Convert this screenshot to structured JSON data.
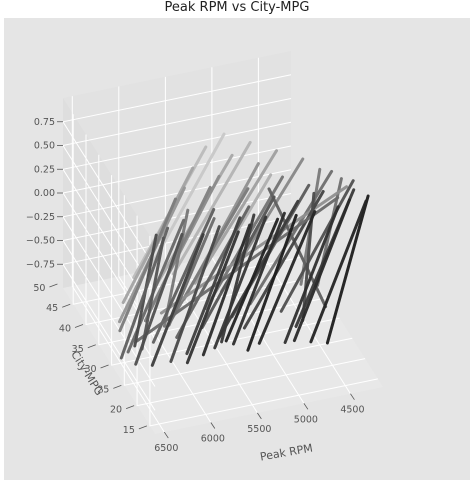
{
  "chart_data": {
    "type": "line",
    "projection": "3d",
    "title": "Peak RPM vs City-MPG",
    "xlabel": "Peak RPM",
    "ylabel": "City-MPG",
    "zlabel": "",
    "x_ticks": [
      "6500",
      "6000",
      "5500",
      "5000",
      "4500"
    ],
    "y_ticks": [
      "15",
      "20",
      "25",
      "30",
      "35",
      "40",
      "45",
      "50"
    ],
    "z_ticks": [
      "0.75",
      "0.50",
      "0.25",
      "0.00",
      "−0.25",
      "−0.50",
      "−0.75"
    ],
    "xlim": [
      4150,
      6600
    ],
    "ylim": [
      13,
      49
    ],
    "zlim": [
      -1,
      1
    ],
    "x_inverted": true,
    "grid": true,
    "background": "#e5e5e5",
    "segments": [
      {
        "x1": 4200,
        "y1": 17,
        "x2": 4500,
        "y2": 22,
        "gray": "#1c1c1c"
      },
      {
        "x1": 4250,
        "y1": 16,
        "x2": 4650,
        "y2": 23,
        "gray": "#242424"
      },
      {
        "x1": 4400,
        "y1": 17,
        "x2": 4800,
        "y2": 24,
        "gray": "#2a2a2a"
      },
      {
        "x1": 4550,
        "y1": 16,
        "x2": 4900,
        "y2": 24,
        "gray": "#303030"
      },
      {
        "x1": 4300,
        "y1": 19,
        "x2": 4700,
        "y2": 27,
        "gray": "#3a3a3a"
      },
      {
        "x1": 4800,
        "y1": 16,
        "x2": 5150,
        "y2": 25,
        "gray": "#262626"
      },
      {
        "x1": 5000,
        "y1": 16,
        "x2": 5300,
        "y2": 24,
        "gray": "#1e1e1e"
      },
      {
        "x1": 5100,
        "y1": 17,
        "x2": 5400,
        "y2": 26,
        "gray": "#2e2e2e"
      },
      {
        "x1": 5200,
        "y1": 16,
        "x2": 5450,
        "y2": 27,
        "gray": "#222222"
      },
      {
        "x1": 5300,
        "y1": 17,
        "x2": 5600,
        "y2": 26,
        "gray": "#363636"
      },
      {
        "x1": 4600,
        "y1": 20,
        "x2": 5200,
        "y2": 29,
        "gray": "#444444"
      },
      {
        "x1": 4900,
        "y1": 19,
        "x2": 5500,
        "y2": 28,
        "gray": "#3c3c3c"
      },
      {
        "x1": 5500,
        "y1": 16,
        "x2": 5750,
        "y2": 25,
        "gray": "#2c2c2c"
      },
      {
        "x1": 5550,
        "y1": 18,
        "x2": 5900,
        "y2": 26,
        "gray": "#404040"
      },
      {
        "x1": 5650,
        "y1": 15,
        "x2": 5950,
        "y2": 24,
        "gray": "#333333"
      },
      {
        "x1": 5800,
        "y1": 17,
        "x2": 6100,
        "y2": 25,
        "gray": "#484848"
      },
      {
        "x1": 6000,
        "y1": 16,
        "x2": 6300,
        "y2": 25,
        "gray": "#3e3e3e"
      },
      {
        "x1": 6200,
        "y1": 17,
        "x2": 6450,
        "y2": 26,
        "gray": "#505050"
      },
      {
        "x1": 4250,
        "y1": 21,
        "x2": 4750,
        "y2": 31,
        "gray": "#505050"
      },
      {
        "x1": 4700,
        "y1": 22,
        "x2": 5250,
        "y2": 32,
        "gray": "#5a5a5a"
      },
      {
        "x1": 5100,
        "y1": 21,
        "x2": 5600,
        "y2": 31,
        "gray": "#555555"
      },
      {
        "x1": 5400,
        "y1": 20,
        "x2": 5900,
        "y2": 30,
        "gray": "#626262"
      },
      {
        "x1": 5750,
        "y1": 21,
        "x2": 6150,
        "y2": 30,
        "gray": "#5e5e5e"
      },
      {
        "x1": 6100,
        "y1": 20,
        "x2": 6450,
        "y2": 29,
        "gray": "#686868"
      },
      {
        "x1": 6300,
        "y1": 19,
        "x2": 6550,
        "y2": 28,
        "gray": "#606060"
      },
      {
        "x1": 4400,
        "y1": 24,
        "x2": 5000,
        "y2": 34,
        "gray": "#6e6e6e"
      },
      {
        "x1": 4900,
        "y1": 25,
        "x2": 5450,
        "y2": 35,
        "gray": "#747474"
      },
      {
        "x1": 5300,
        "y1": 24,
        "x2": 5850,
        "y2": 34,
        "gray": "#7a7a7a"
      },
      {
        "x1": 5650,
        "y1": 26,
        "x2": 6100,
        "y2": 35,
        "gray": "#808080"
      },
      {
        "x1": 6050,
        "y1": 25,
        "x2": 6400,
        "y2": 34,
        "gray": "#7c7c7c"
      },
      {
        "x1": 4600,
        "y1": 28,
        "x2": 5200,
        "y2": 38,
        "gray": "#888888"
      },
      {
        "x1": 5050,
        "y1": 29,
        "x2": 5600,
        "y2": 38,
        "gray": "#909090"
      },
      {
        "x1": 5500,
        "y1": 28,
        "x2": 6000,
        "y2": 37,
        "gray": "#8c8c8c"
      },
      {
        "x1": 5900,
        "y1": 27,
        "x2": 6350,
        "y2": 36,
        "gray": "#959595"
      },
      {
        "x1": 4800,
        "y1": 31,
        "x2": 5400,
        "y2": 41,
        "gray": "#a0a0a0"
      },
      {
        "x1": 5250,
        "y1": 32,
        "x2": 5800,
        "y2": 42,
        "gray": "#a8a8a8"
      },
      {
        "x1": 5700,
        "y1": 31,
        "x2": 6200,
        "y2": 40,
        "gray": "#a4a4a4"
      },
      {
        "x1": 5000,
        "y1": 34,
        "x2": 5550,
        "y2": 44,
        "gray": "#b4b4b4"
      },
      {
        "x1": 5450,
        "y1": 35,
        "x2": 5950,
        "y2": 45,
        "gray": "#bcbcbc"
      },
      {
        "x1": 5200,
        "y1": 37,
        "x2": 5700,
        "y2": 47,
        "gray": "#c8c8c8"
      },
      {
        "x1": 6450,
        "y1": 18,
        "x2": 6350,
        "y2": 30,
        "gray": "#4a4a4a"
      },
      {
        "x1": 6400,
        "y1": 17,
        "x2": 6300,
        "y2": 29,
        "gray": "#555555"
      },
      {
        "x1": 4350,
        "y1": 22,
        "x2": 4250,
        "y2": 35,
        "gray": "#707070"
      },
      {
        "x1": 4500,
        "y1": 25,
        "x2": 4400,
        "y2": 36,
        "gray": "#7a7a7a"
      },
      {
        "x1": 4350,
        "y1": 20,
        "x2": 5900,
        "y2": 36,
        "gray": "#909090"
      },
      {
        "x1": 4500,
        "y1": 18,
        "x2": 6300,
        "y2": 31,
        "gray": "#6a6a6a"
      },
      {
        "x1": 5100,
        "y1": 23,
        "x2": 4300,
        "y2": 30,
        "gray": "#606060"
      },
      {
        "x1": 5000,
        "y1": 26,
        "x2": 5200,
        "y2": 42,
        "gray": "#b0b0b0"
      },
      {
        "x1": 5800,
        "y1": 19,
        "x2": 5900,
        "y2": 33,
        "gray": "#6c6c6c"
      },
      {
        "x1": 4700,
        "y1": 20,
        "x2": 4600,
        "y2": 28,
        "gray": "#4c4c4c"
      },
      {
        "x1": 6000,
        "y1": 22,
        "x2": 5950,
        "y2": 33,
        "gray": "#777777"
      },
      {
        "x1": 5400,
        "y1": 18,
        "x2": 5500,
        "y2": 27,
        "gray": "#3a3a3a"
      }
    ]
  }
}
